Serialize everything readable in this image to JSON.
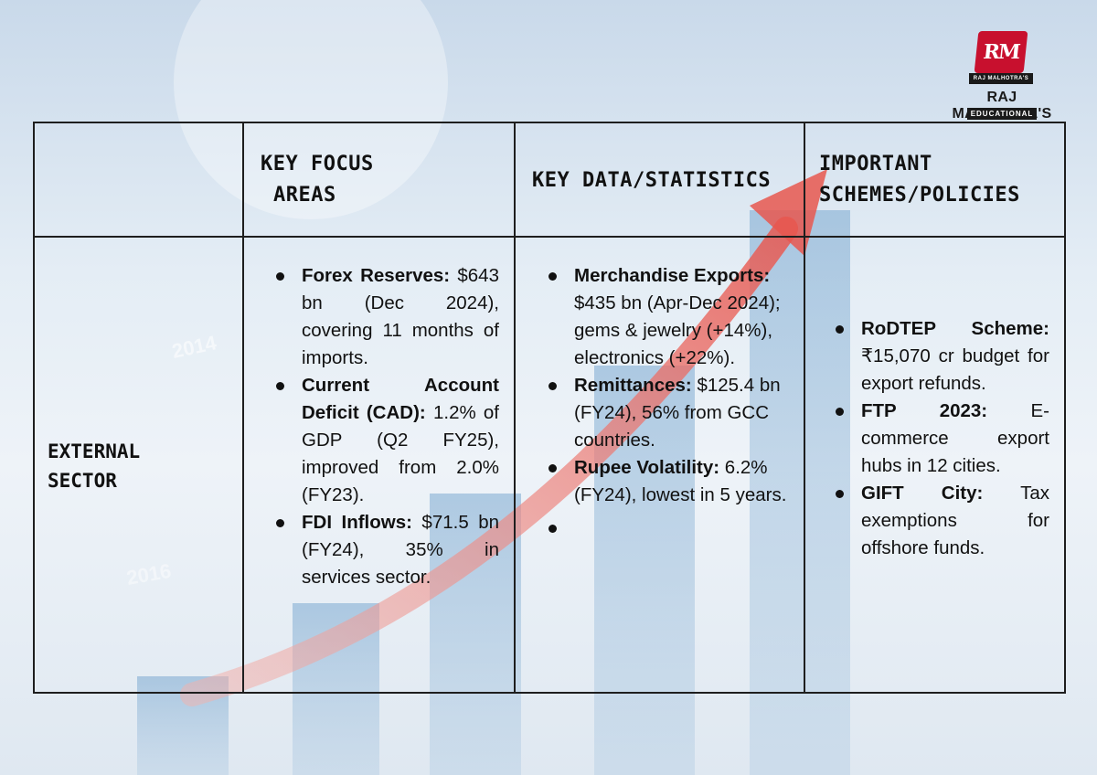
{
  "logo": {
    "monogram": "RM",
    "ribbon": "RAJ MALHOTRA'S",
    "brand": "RAJ MALHOTRA'S",
    "sub": "EDUCATIONAL"
  },
  "background_labels": [
    "2014",
    "2016"
  ],
  "table": {
    "headers": {
      "col0": "",
      "col1_line1": "KEY FOCUS",
      "col1_line2": "AREAS",
      "col2": "KEY DATA/STATISTICS",
      "col3_line1": "IMPORTANT",
      "col3_line2": "SCHEMES/POLICIES"
    },
    "row": {
      "sector_line1": "EXTERNAL",
      "sector_line2": "SECTOR",
      "focus_areas": [
        {
          "label": "Forex Reserves:",
          "text": " $643 bn (Dec 2024), covering 11 months of imports."
        },
        {
          "label": "Current Account Deficit (CAD):",
          "text": " 1.2% of GDP (Q2 FY25), improved from 2.0% (FY23)."
        },
        {
          "label": "FDI Inflows:",
          "text": " $71.5 bn (FY24), 35% in services sector."
        }
      ],
      "statistics": [
        {
          "label": "Merchandise Exports:",
          "text": " $435 bn (Apr-Dec 2024); gems & jewelry (+14%), electronics (+22%)."
        },
        {
          "label": "Remittances:",
          "text": " $125.4 bn (FY24), 56% from GCC countries."
        },
        {
          "label": "Rupee Volatility:",
          "text": " 6.2% (FY24), lowest in 5 years."
        },
        {
          "label": "",
          "text": ""
        }
      ],
      "schemes": [
        {
          "label": "RoDTEP Scheme:",
          "text": " ₹15,070 cr budget for export refunds."
        },
        {
          "label": "FTP 2023:",
          "text": " E-commerce export hubs in 12 cities."
        },
        {
          "label": "GIFT City:",
          "text": " Tax exemptions for offshore funds."
        }
      ]
    }
  },
  "colors": {
    "arrow": "#e8574f",
    "bars": "#6f9fc9",
    "border": "#1e1e1e"
  }
}
